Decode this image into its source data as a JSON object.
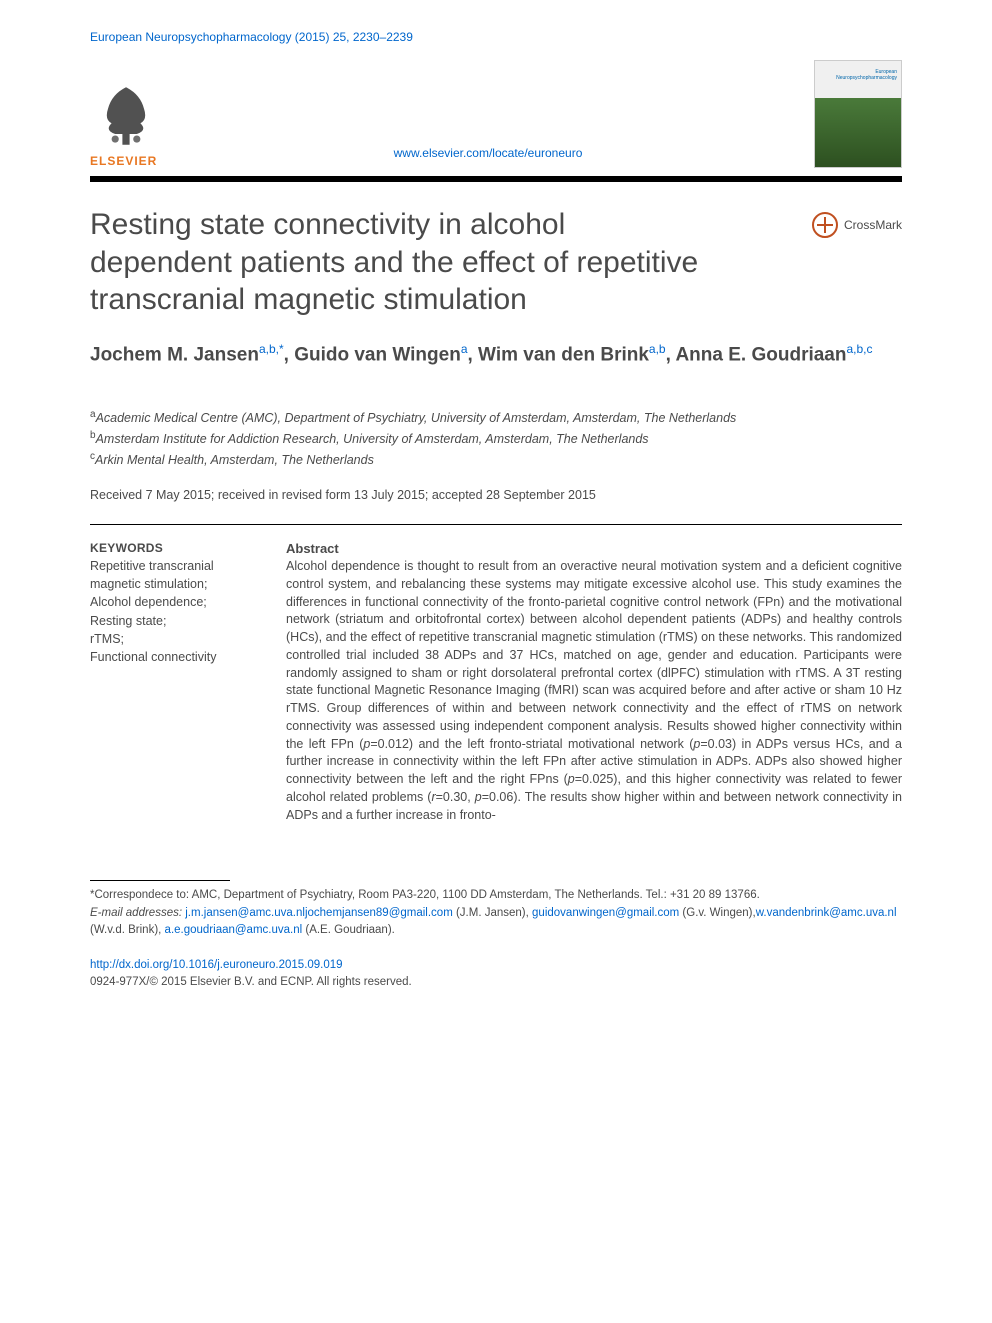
{
  "colors": {
    "link": "#0066cc",
    "text": "#4a4a4a",
    "elsevier_orange": "#e87722",
    "rule_black": "#000000",
    "crossmark_ring": "#c05020",
    "background": "#ffffff"
  },
  "typography": {
    "title_fontsize": 30,
    "authors_fontsize": 19,
    "body_fontsize": 12.5,
    "small_fontsize": 11.5
  },
  "journal_ref": "European Neuropsychopharmacology (2015) 25, 2230–2239",
  "publisher_logo_text": "ELSEVIER",
  "journal_link": "www.elsevier.com/locate/euroneuro",
  "journal_cover_label": "European Neuropsychopharmacology",
  "crossmark_label": "CrossMark",
  "article_title": "Resting state connectivity in alcohol dependent patients and the effect of repetitive transcranial magnetic stimulation",
  "authors_html": "Jochem M. Jansen|a,b,*|, Guido van Wingen|a|, Wim van den Brink|a,b|, Anna E. Goudriaan|a,b,c|",
  "authors": [
    {
      "name": "Jochem M. Jansen",
      "sup": "a,b,",
      "star": true
    },
    {
      "name": "Guido van Wingen",
      "sup": "a"
    },
    {
      "name": "Wim van den Brink",
      "sup": "a,b"
    },
    {
      "name": "Anna E. Goudriaan",
      "sup": "a,b,c"
    }
  ],
  "affiliations": [
    {
      "key": "a",
      "text": "Academic Medical Centre (AMC), Department of Psychiatry, University of Amsterdam, Amsterdam, The Netherlands"
    },
    {
      "key": "b",
      "text": "Amsterdam Institute for Addiction Research, University of Amsterdam, Amsterdam, The Netherlands"
    },
    {
      "key": "c",
      "text": "Arkin Mental Health, Amsterdam, The Netherlands"
    }
  ],
  "dates": "Received 7 May 2015; received in revised form 13 July 2015; accepted 28 September 2015",
  "keywords_heading": "KEYWORDS",
  "keywords": [
    "Repetitive transcranial magnetic stimulation;",
    "Alcohol dependence;",
    "Resting state;",
    "rTMS;",
    "Functional connectivity"
  ],
  "abstract_heading": "Abstract",
  "abstract_text": "Alcohol dependence is thought to result from an overactive neural motivation system and a deficient cognitive control system, and rebalancing these systems may mitigate excessive alcohol use. This study examines the differences in functional connectivity of the fronto-parietal cognitive control network (FPn) and the motivational network (striatum and orbitofrontal cortex) between alcohol dependent patients (ADPs) and healthy controls (HCs), and the effect of repetitive transcranial magnetic stimulation (rTMS) on these networks. This randomized controlled trial included 38 ADPs and 37 HCs, matched on age, gender and education. Participants were randomly assigned to sham or right dorsolateral prefrontal cortex (dlPFC) stimulation with rTMS. A 3T resting state functional Magnetic Resonance Imaging (fMRI) scan was acquired before and after active or sham 10 Hz rTMS. Group differences of within and between network connectivity and the effect of rTMS on network connectivity was assessed using independent component analysis. Results showed higher connectivity within the left FPn (p=0.012) and the left fronto-striatal motivational network (p=0.03) in ADPs versus HCs, and a further increase in connectivity within the left FPn after active stimulation in ADPs. ADPs also showed higher connectivity between the left and the right FPns (p=0.025), and this higher connectivity was related to fewer alcohol related problems (r=0.30, p=0.06). The results show higher within and between network connectivity in ADPs and a further increase in fronto-",
  "correspondence": {
    "star_line": "*Correspondece to: AMC, Department of Psychiatry, Room PA3-220, 1100 DD Amsterdam, The Netherlands. Tel.: +31 20 89 13766.",
    "email_label": "E-mail addresses:",
    "emails": [
      {
        "addr": "j.m.jansen@amc.uva.nl",
        "who": ""
      },
      {
        "addr": "jochemjansen89@gmail.com",
        "who": " (J.M. Jansen), "
      },
      {
        "addr": "guidovanwingen@gmail.com",
        "who": " (G.v. Wingen),"
      },
      {
        "addr": "w.vandenbrink@amc.uva.nl",
        "who": " (W.v.d. Brink), "
      },
      {
        "addr": "a.e.goudriaan@amc.uva.nl",
        "who": " (A.E. Goudriaan)."
      }
    ]
  },
  "doi": "http://dx.doi.org/10.1016/j.euroneuro.2015.09.019",
  "copyright": "0924-977X/© 2015 Elsevier B.V. and ECNP. All rights reserved."
}
